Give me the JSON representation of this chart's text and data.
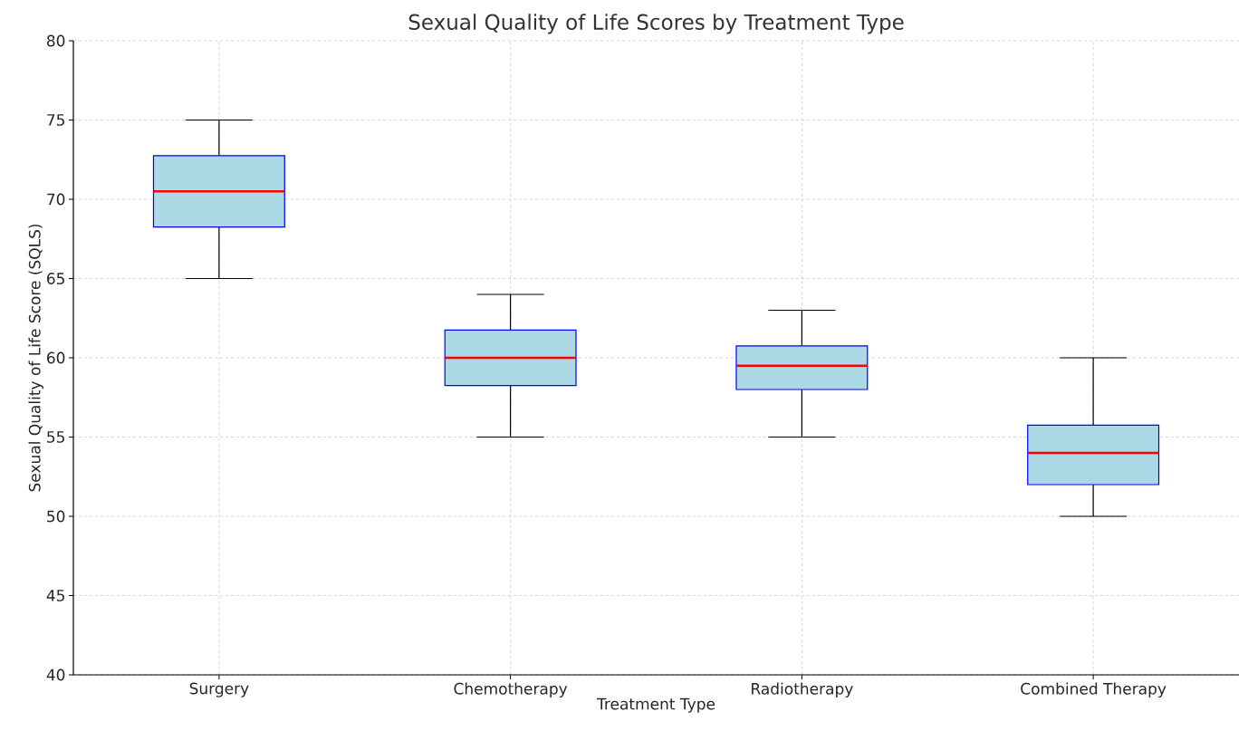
{
  "chart_data": {
    "type": "box",
    "title": "Sexual Quality of Life Scores by Treatment Type",
    "xlabel": "Treatment Type",
    "ylabel": "Sexual Quality of Life Score (SQLS)",
    "categories": [
      "Surgery",
      "Chemotherapy",
      "Radiotherapy",
      "Combined Therapy"
    ],
    "color": "#add8e6",
    "boxes": [
      {
        "low": 65,
        "q1": 68.25,
        "median": 70.5,
        "q3": 72.75,
        "high": 75
      },
      {
        "low": 55,
        "q1": 58.25,
        "median": 60,
        "q3": 61.75,
        "high": 64
      },
      {
        "low": 55,
        "q1": 58,
        "median": 59.5,
        "q3": 60.75,
        "high": 63
      },
      {
        "low": 50,
        "q1": 52,
        "median": 54,
        "q3": 55.75,
        "high": 60
      }
    ],
    "ylim": [
      40,
      80
    ],
    "yticks": [
      40,
      45,
      50,
      55,
      60,
      65,
      70,
      75,
      80
    ],
    "grid": true
  }
}
